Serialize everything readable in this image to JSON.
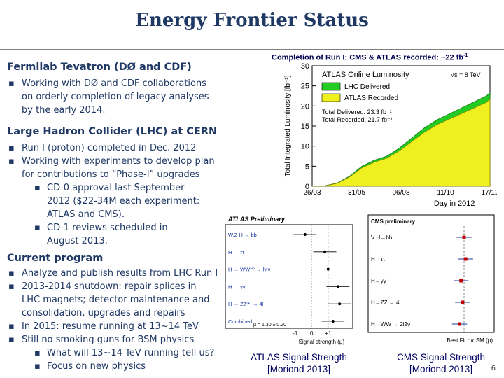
{
  "title": "Energy Frontier Status",
  "left": {
    "tevatron_heading": "Fermilab Tevatron (DØ and CDF)",
    "tevatron_items": [
      "Working with DØ and CDF collaborations on orderly completion of legacy analyses by the early 2014."
    ],
    "lhc_heading": "Large Hadron Collider (LHC) at CERN",
    "lhc_items": [
      "Run I (proton) completed in Dec. 2012",
      "Working with experiments to develop plan for contributions to “Phase-I” upgrades"
    ],
    "lhc_subitems": [
      "CD-0 approval last September 2012 ($22-34M each experiment: ATLAS and CMS).",
      "CD-1 reviews scheduled in August 2013."
    ],
    "current_heading": "Current program",
    "current_items": [
      "Analyze and publish results from LHC Run I",
      "2013-2014 shutdown: repair splices in LHC magnets; detector maintenance and consolidation, upgrades and repairs",
      "In 2015: resume running at 13~14 TeV",
      "Still no smoking guns for BSM physics"
    ],
    "current_subitems": [
      "What will 13~14 TeV running tell us?",
      "Focus on new physics"
    ]
  },
  "lumi_caption": "Completion of Run I; CMS & ATLAS recorded: ~22 fb",
  "lumi_caption_sup": "-1",
  "atlas_caption": [
    "ATLAS Signal Strength",
    "[Moriond 2013]"
  ],
  "cms_caption": [
    "CMS Signal Strength",
    "[Moriond 2013]"
  ],
  "page_number": "6",
  "chart_data": [
    {
      "type": "area",
      "title": "ATLAS Online Luminosity",
      "energy_label": "√s = 8 TeV",
      "xlabel": "Day in 2012",
      "ylabel": "Total Integrated Luminosity [fb⁻¹]",
      "x_ticks": [
        "26/03",
        "31/05",
        "06/08",
        "11/10",
        "17/12"
      ],
      "ylim": [
        0,
        30
      ],
      "y_ticks": [
        0,
        5,
        10,
        15,
        20,
        25,
        30
      ],
      "legend": [
        "LHC Delivered",
        "ATLAS Recorded"
      ],
      "totals": [
        "Total Delivered: 23.3 fb⁻¹",
        "Total Recorded: 21.7 fb⁻¹"
      ],
      "colors": {
        "delivered": "#22cc22",
        "recorded": "#f0f020"
      },
      "series": [
        {
          "name": "LHC Delivered",
          "values": [
            0,
            0.1,
            0.8,
            2.5,
            5.0,
            6.5,
            7.5,
            9.5,
            12.0,
            14.5,
            16.5,
            18.0,
            19.5,
            21.0,
            22.5,
            23.3
          ]
        },
        {
          "name": "ATLAS Recorded",
          "values": [
            0,
            0.1,
            0.7,
            2.3,
            4.6,
            6.0,
            7.0,
            8.8,
            11.1,
            13.4,
            15.3,
            16.7,
            18.1,
            19.5,
            20.9,
            21.7
          ]
        }
      ],
      "x": [
        0,
        0.07,
        0.14,
        0.21,
        0.28,
        0.35,
        0.42,
        0.49,
        0.56,
        0.63,
        0.7,
        0.77,
        0.84,
        0.91,
        0.98,
        1.0
      ]
    },
    {
      "type": "scatter",
      "title": "ATLAS Preliminary",
      "xlabel": "Signal strength (μ)",
      "x_ticks": [
        "-1",
        "0",
        "+1"
      ],
      "categories": [
        "W,Z H → bb",
        "H → ττ",
        "H → WW⁽*⁾ → lνlν",
        "H → γγ",
        "H → ZZ⁽*⁾ → 4l",
        "Combined"
      ],
      "values": [
        -0.4,
        0.8,
        1.0,
        1.6,
        1.7,
        1.3
      ],
      "combined_label": "μ = 1.30 ± 0.20"
    },
    {
      "type": "scatter",
      "title": "CMS preliminary",
      "xlabel": "Best Fit σ/σSM (μ)",
      "categories": [
        "V H→bb",
        "H→ττ",
        "H→γγ",
        "H→ZZ → 4l",
        "H→WW → 2l2ν"
      ],
      "values": [
        1.0,
        1.1,
        0.8,
        0.9,
        0.7
      ]
    }
  ]
}
